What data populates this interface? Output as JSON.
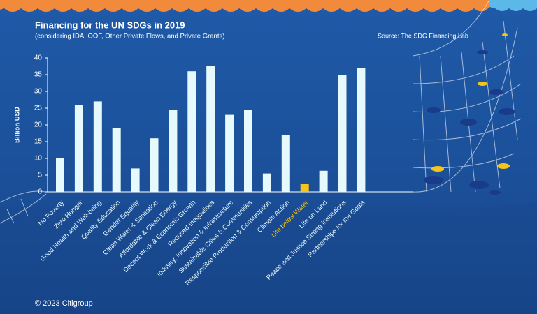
{
  "chart_data": {
    "type": "bar",
    "title": "Financing for the UN SDGs in 2019",
    "subtitle": "(considering IDA, OOF, Other Private Flows, and Private Grants)",
    "source": "Source: The SDG Financing Lab",
    "y_label": "Billion USD",
    "categories": [
      "No Poverty",
      "Zero Hunger",
      "Good Health and Well-being",
      "Quality Education",
      "Gender Equality",
      "Clean Water & Sanitation",
      "Affordable & Clean Energy",
      "Decent Work & Economic Growth",
      "Reduced Inequalities",
      "Industry, Innovation & Infrastructure",
      "Sustainable Cities & Communities",
      "Responsible Production & Consumption",
      "Climate Action",
      "Life below Water",
      "Life on Land",
      "Peace and Justice Strong Institutions",
      "Partnerships for the Goals"
    ],
    "values": [
      10,
      26,
      27,
      19,
      7,
      16,
      24.5,
      36,
      37.5,
      23,
      24.5,
      5.5,
      17,
      2.5,
      6.3,
      35,
      37
    ],
    "colors": [
      "#e6f9fd",
      "#e6f9fd",
      "#e6f9fd",
      "#e6f9fd",
      "#e6f9fd",
      "#e6f9fd",
      "#e6f9fd",
      "#e6f9fd",
      "#e6f9fd",
      "#e6f9fd",
      "#e6f9fd",
      "#e6f9fd",
      "#e6f9fd",
      "#f5c518",
      "#e6f9fd",
      "#e6f9fd",
      "#e6f9fd"
    ],
    "ylim": [
      0,
      40
    ],
    "yticks": [
      0,
      5,
      10,
      15,
      20,
      25,
      30,
      35,
      40
    ]
  },
  "footer": "© 2023 Citigroup"
}
